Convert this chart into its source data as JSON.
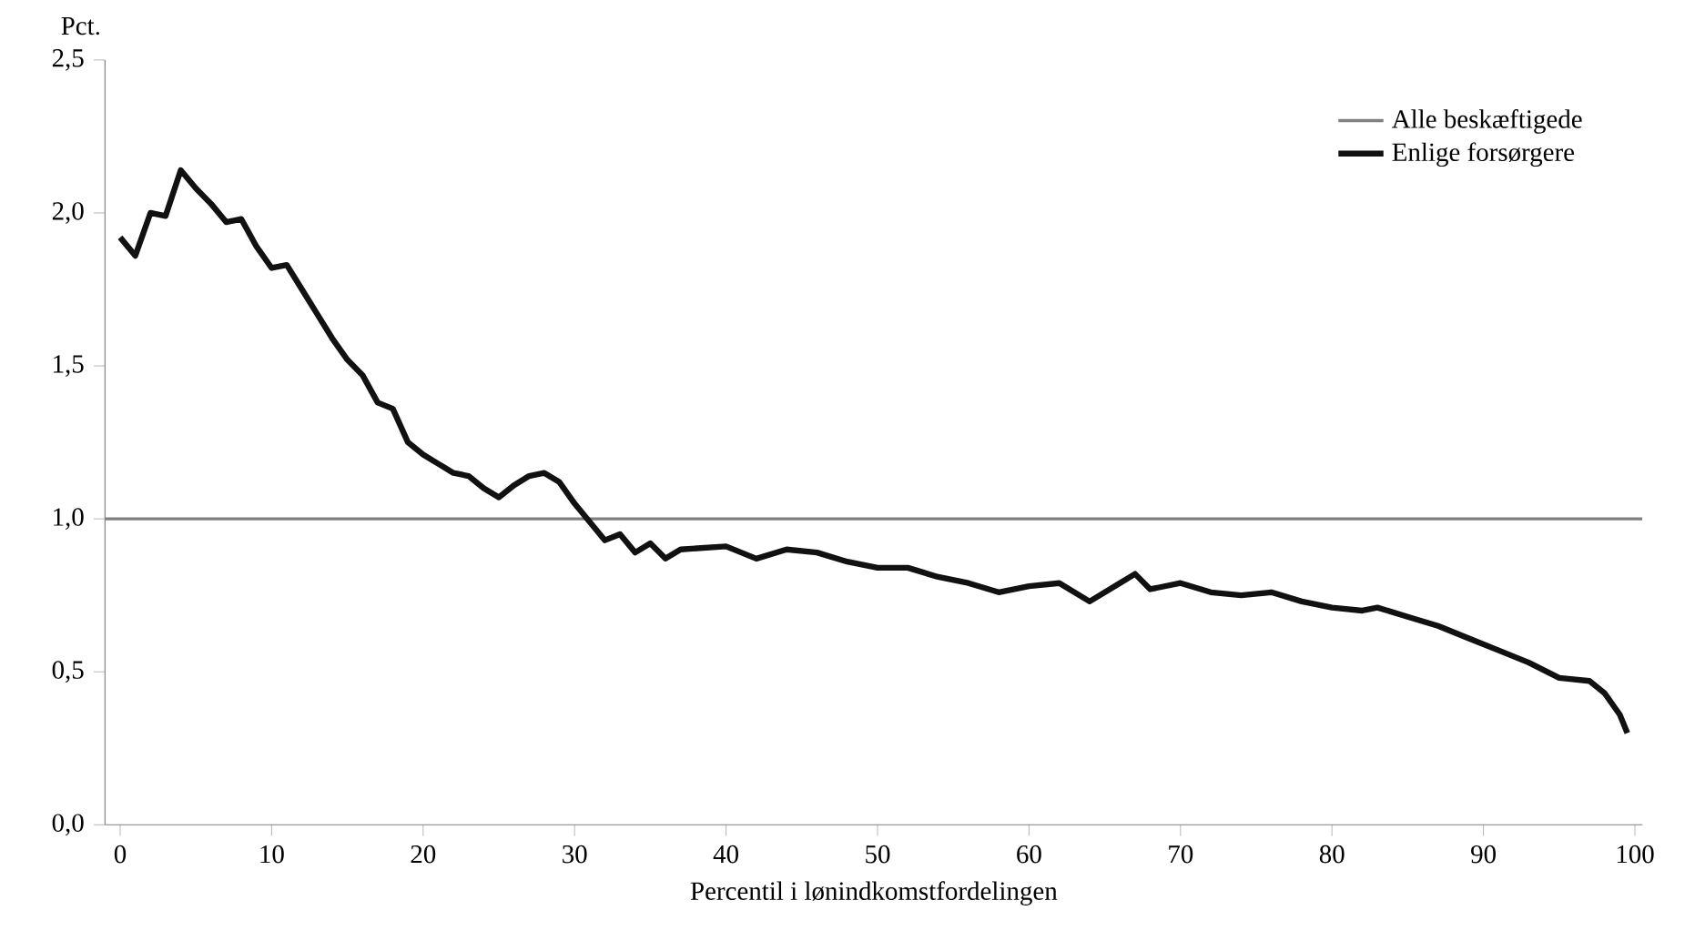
{
  "chart_data": {
    "type": "line",
    "ylabel": "Pct.",
    "xlabel": "Percentil i lønindkomstfordelingen",
    "xlim": [
      -1,
      100.5
    ],
    "ylim": [
      0,
      2.5
    ],
    "xticks": [
      0,
      10,
      20,
      30,
      40,
      50,
      60,
      70,
      80,
      90,
      100
    ],
    "yticks": [
      {
        "value": 0,
        "label": "0,0"
      },
      {
        "value": 0.5,
        "label": "0,5"
      },
      {
        "value": 1,
        "label": "1,0"
      },
      {
        "value": 1.5,
        "label": "1,5"
      },
      {
        "value": 2,
        "label": "2,0"
      },
      {
        "value": 2.5,
        "label": "2,5"
      }
    ],
    "legend": "top right",
    "grid": false,
    "series": [
      {
        "name": "Alle beskæftigede",
        "color": "#808080",
        "x": [
          -1,
          100.5
        ],
        "values": [
          1,
          1
        ]
      },
      {
        "name": "Enlige forsørgere",
        "color": "#111111",
        "x": [
          0,
          1,
          2,
          3,
          4,
          5,
          6,
          7,
          8,
          9,
          10,
          11,
          12,
          13,
          14,
          15,
          16,
          17,
          18,
          19,
          20,
          21,
          22,
          23,
          24,
          25,
          26,
          27,
          28,
          29,
          30,
          31,
          32,
          33,
          34,
          35,
          36,
          37,
          40,
          42,
          44,
          46,
          48,
          50,
          52,
          54,
          56,
          58,
          60,
          62,
          64,
          66,
          67,
          68,
          70,
          72,
          74,
          76,
          78,
          80,
          82,
          83,
          85,
          87,
          89,
          91,
          93,
          95,
          97,
          98,
          99,
          99.5
        ],
        "values": [
          1.92,
          1.86,
          2.0,
          1.99,
          2.14,
          2.08,
          2.03,
          1.97,
          1.98,
          1.89,
          1.82,
          1.83,
          1.75,
          1.67,
          1.59,
          1.52,
          1.47,
          1.38,
          1.36,
          1.25,
          1.21,
          1.18,
          1.15,
          1.14,
          1.1,
          1.07,
          1.11,
          1.14,
          1.15,
          1.12,
          1.05,
          0.99,
          0.93,
          0.95,
          0.89,
          0.92,
          0.87,
          0.9,
          0.91,
          0.87,
          0.9,
          0.89,
          0.86,
          0.84,
          0.84,
          0.81,
          0.79,
          0.76,
          0.78,
          0.79,
          0.73,
          0.79,
          0.82,
          0.77,
          0.79,
          0.76,
          0.75,
          0.76,
          0.73,
          0.71,
          0.7,
          0.71,
          0.68,
          0.65,
          0.61,
          0.57,
          0.53,
          0.48,
          0.47,
          0.43,
          0.36,
          0.3
        ]
      }
    ]
  }
}
